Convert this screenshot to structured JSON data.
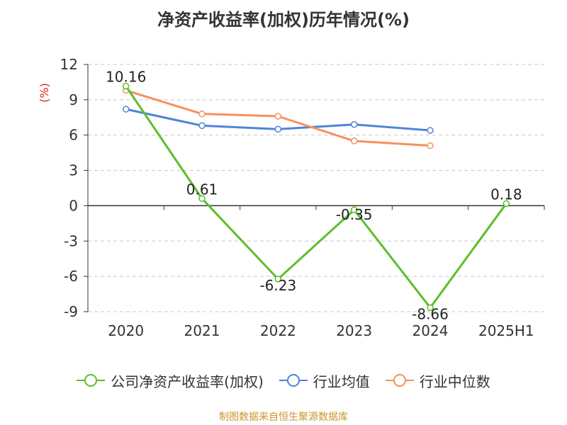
{
  "chart_data": {
    "type": "line",
    "title": "净资产收益率(加权)历年情况(%)",
    "ylabel": "(%)",
    "xlabel": "",
    "categories": [
      "2020",
      "2021",
      "2022",
      "2023",
      "2024",
      "2025H1"
    ],
    "ylim": [
      -9,
      12
    ],
    "yticks": [
      12,
      9,
      6,
      3,
      0,
      -3,
      -6,
      -9
    ],
    "grid": true,
    "legend_position": "bottom",
    "series": [
      {
        "name": "公司净资产收益率(加权)",
        "color": "#5cbf2a",
        "values": [
          10.16,
          0.61,
          -6.23,
          -0.35,
          -8.66,
          0.18
        ],
        "data_labels": [
          "10.16",
          "0.61",
          "-6.23",
          "-0.35",
          "-8.66",
          "0.18"
        ]
      },
      {
        "name": "行业均值",
        "color": "#4f84d8",
        "values": [
          8.2,
          6.8,
          6.5,
          6.9,
          6.4,
          null
        ]
      },
      {
        "name": "行业中位数",
        "color": "#f7905e",
        "values": [
          9.8,
          7.8,
          7.6,
          5.5,
          5.1,
          null
        ]
      }
    ],
    "source": "制图数据来自恒生聚源数据库"
  }
}
